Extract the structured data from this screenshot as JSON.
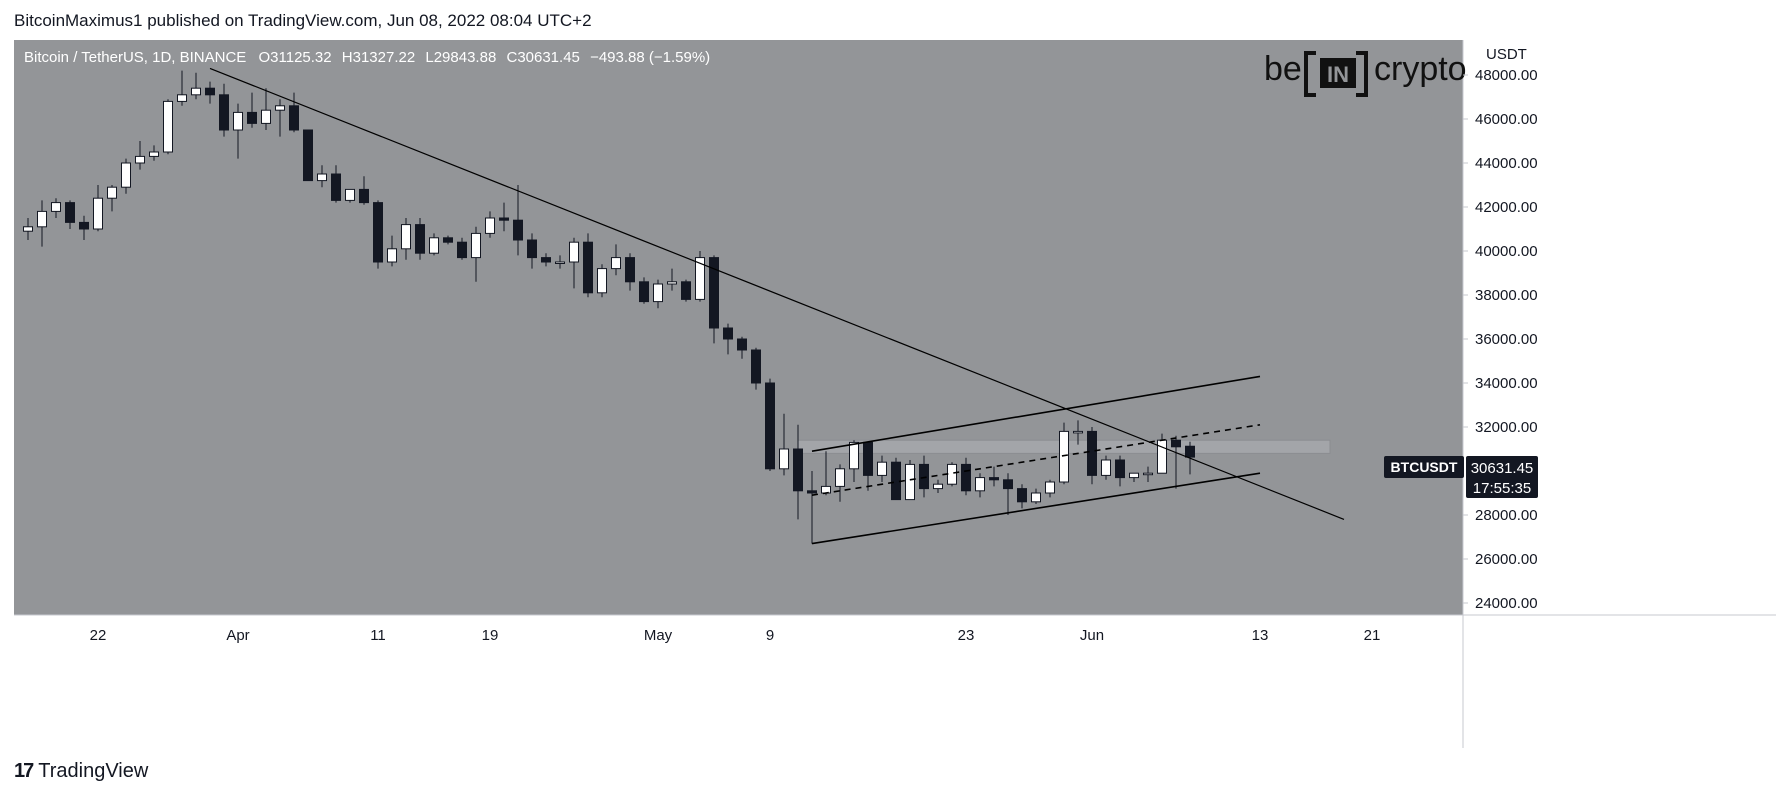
{
  "header": {
    "attribution": "BitcoinMaximus1 published on TradingView.com, Jun 08, 2022 08:04 UTC+2"
  },
  "legend": {
    "symbol": "Bitcoin / TetherUS, 1D, BINANCE",
    "o_label": "O",
    "o_value": "31125.32",
    "h_label": "H",
    "h_value": "31327.22",
    "l_label": "L",
    "l_value": "29843.88",
    "c_label": "C",
    "c_value": "30631.45",
    "change": "−493.88 (−1.59%)"
  },
  "watermark": {
    "left": "be",
    "middle": "IN",
    "right": "crypto"
  },
  "price_axis": {
    "currency": "USDT",
    "ticks": [
      "48000.00",
      "46000.00",
      "44000.00",
      "42000.00",
      "40000.00",
      "38000.00",
      "36000.00",
      "34000.00",
      "32000.00",
      "28000.00",
      "26000.00",
      "24000.00"
    ],
    "symbol_tag": "BTCUSDT",
    "last_price": "30631.45",
    "countdown": "17:55:35"
  },
  "time_axis": {
    "labels": [
      "22",
      "Apr",
      "11",
      "19",
      "May",
      "9",
      "23",
      "Jun",
      "13",
      "21"
    ]
  },
  "footer": {
    "brand": "TradingView"
  },
  "colors": {
    "background": "#939598",
    "bull": "#ffffff",
    "bear": "#131722",
    "line": "#000000",
    "resistance_band": "#a3a5a9",
    "tag_bg": "#131722"
  },
  "chart_data": {
    "type": "candlestick",
    "title": "Bitcoin / TetherUS, 1D, BINANCE",
    "ylabel": "USDT",
    "ylim": [
      24000,
      49000
    ],
    "x_ticks": [
      {
        "date": "2022-03-22",
        "label": "22"
      },
      {
        "date": "2022-04-01",
        "label": "Apr"
      },
      {
        "date": "2022-04-11",
        "label": "11"
      },
      {
        "date": "2022-04-19",
        "label": "19"
      },
      {
        "date": "2022-05-01",
        "label": "May"
      },
      {
        "date": "2022-05-09",
        "label": "9"
      },
      {
        "date": "2022-05-23",
        "label": "23"
      },
      {
        "date": "2022-06-01",
        "label": "Jun"
      },
      {
        "date": "2022-06-13",
        "label": "13"
      },
      {
        "date": "2022-06-21",
        "label": "21"
      }
    ],
    "candles": [
      {
        "date": "2022-03-17",
        "o": 40900,
        "h": 41500,
        "l": 40500,
        "c": 41100
      },
      {
        "date": "2022-03-18",
        "o": 41100,
        "h": 42300,
        "l": 40200,
        "c": 41800
      },
      {
        "date": "2022-03-19",
        "o": 41800,
        "h": 42400,
        "l": 41500,
        "c": 42200
      },
      {
        "date": "2022-03-20",
        "o": 42200,
        "h": 42300,
        "l": 41000,
        "c": 41300
      },
      {
        "date": "2022-03-21",
        "o": 41300,
        "h": 41600,
        "l": 40500,
        "c": 41000
      },
      {
        "date": "2022-03-22",
        "o": 41000,
        "h": 43000,
        "l": 40900,
        "c": 42400
      },
      {
        "date": "2022-03-23",
        "o": 42400,
        "h": 43000,
        "l": 41800,
        "c": 42900
      },
      {
        "date": "2022-03-24",
        "o": 42900,
        "h": 44200,
        "l": 42600,
        "c": 44000
      },
      {
        "date": "2022-03-25",
        "o": 44000,
        "h": 45000,
        "l": 43700,
        "c": 44300
      },
      {
        "date": "2022-03-26",
        "o": 44300,
        "h": 44800,
        "l": 44100,
        "c": 44500
      },
      {
        "date": "2022-03-27",
        "o": 44500,
        "h": 46900,
        "l": 44400,
        "c": 46800
      },
      {
        "date": "2022-03-28",
        "o": 46800,
        "h": 48200,
        "l": 46600,
        "c": 47100
      },
      {
        "date": "2022-03-29",
        "o": 47100,
        "h": 48100,
        "l": 46900,
        "c": 47400
      },
      {
        "date": "2022-03-30",
        "o": 47400,
        "h": 47700,
        "l": 46700,
        "c": 47100
      },
      {
        "date": "2022-03-31",
        "o": 47100,
        "h": 47600,
        "l": 45200,
        "c": 45500
      },
      {
        "date": "2022-04-01",
        "o": 45500,
        "h": 46700,
        "l": 44200,
        "c": 46300
      },
      {
        "date": "2022-04-02",
        "o": 46300,
        "h": 47200,
        "l": 45600,
        "c": 45800
      },
      {
        "date": "2022-04-03",
        "o": 45800,
        "h": 47400,
        "l": 45500,
        "c": 46400
      },
      {
        "date": "2022-04-04",
        "o": 46400,
        "h": 46900,
        "l": 45200,
        "c": 46600
      },
      {
        "date": "2022-04-05",
        "o": 46600,
        "h": 47200,
        "l": 45400,
        "c": 45500
      },
      {
        "date": "2022-04-06",
        "o": 45500,
        "h": 45500,
        "l": 43300,
        "c": 43200
      },
      {
        "date": "2022-04-07",
        "o": 43200,
        "h": 43900,
        "l": 42900,
        "c": 43500
      },
      {
        "date": "2022-04-08",
        "o": 43500,
        "h": 43900,
        "l": 42200,
        "c": 42300
      },
      {
        "date": "2022-04-09",
        "o": 42300,
        "h": 42800,
        "l": 42200,
        "c": 42800
      },
      {
        "date": "2022-04-10",
        "o": 42800,
        "h": 43400,
        "l": 42100,
        "c": 42200
      },
      {
        "date": "2022-04-11",
        "o": 42200,
        "h": 42300,
        "l": 39200,
        "c": 39500
      },
      {
        "date": "2022-04-12",
        "o": 39500,
        "h": 40700,
        "l": 39300,
        "c": 40100
      },
      {
        "date": "2022-04-13",
        "o": 40100,
        "h": 41500,
        "l": 39600,
        "c": 41200
      },
      {
        "date": "2022-04-14",
        "o": 41200,
        "h": 41500,
        "l": 39600,
        "c": 39900
      },
      {
        "date": "2022-04-15",
        "o": 39900,
        "h": 40800,
        "l": 39800,
        "c": 40600
      },
      {
        "date": "2022-04-16",
        "o": 40600,
        "h": 40700,
        "l": 40300,
        "c": 40400
      },
      {
        "date": "2022-04-17",
        "o": 40400,
        "h": 40600,
        "l": 39600,
        "c": 39700
      },
      {
        "date": "2022-04-18",
        "o": 39700,
        "h": 41100,
        "l": 38600,
        "c": 40800
      },
      {
        "date": "2022-04-19",
        "o": 40800,
        "h": 41800,
        "l": 40600,
        "c": 41500
      },
      {
        "date": "2022-04-20",
        "o": 41500,
        "h": 42200,
        "l": 40900,
        "c": 41400
      },
      {
        "date": "2022-04-21",
        "o": 41400,
        "h": 43000,
        "l": 39800,
        "c": 40500
      },
      {
        "date": "2022-04-22",
        "o": 40500,
        "h": 40800,
        "l": 39200,
        "c": 39700
      },
      {
        "date": "2022-04-23",
        "o": 39700,
        "h": 39900,
        "l": 39300,
        "c": 39500
      },
      {
        "date": "2022-04-24",
        "o": 39500,
        "h": 39800,
        "l": 39200,
        "c": 39500
      },
      {
        "date": "2022-04-25",
        "o": 39500,
        "h": 40600,
        "l": 38300,
        "c": 40400
      },
      {
        "date": "2022-04-26",
        "o": 40400,
        "h": 40800,
        "l": 37900,
        "c": 38100
      },
      {
        "date": "2022-04-27",
        "o": 38100,
        "h": 39400,
        "l": 37900,
        "c": 39200
      },
      {
        "date": "2022-04-28",
        "o": 39200,
        "h": 40300,
        "l": 38900,
        "c": 39700
      },
      {
        "date": "2022-04-29",
        "o": 39700,
        "h": 39900,
        "l": 38200,
        "c": 38600
      },
      {
        "date": "2022-04-30",
        "o": 38600,
        "h": 38800,
        "l": 37600,
        "c": 37700
      },
      {
        "date": "2022-05-01",
        "o": 37700,
        "h": 38700,
        "l": 37400,
        "c": 38500
      },
      {
        "date": "2022-05-02",
        "o": 38500,
        "h": 39200,
        "l": 38200,
        "c": 38600
      },
      {
        "date": "2022-05-03",
        "o": 38600,
        "h": 38700,
        "l": 37700,
        "c": 37800
      },
      {
        "date": "2022-05-04",
        "o": 37800,
        "h": 40000,
        "l": 37700,
        "c": 39700
      },
      {
        "date": "2022-05-05",
        "o": 39700,
        "h": 39800,
        "l": 35800,
        "c": 36500
      },
      {
        "date": "2022-05-06",
        "o": 36500,
        "h": 36700,
        "l": 35300,
        "c": 36000
      },
      {
        "date": "2022-05-07",
        "o": 36000,
        "h": 36100,
        "l": 35100,
        "c": 35500
      },
      {
        "date": "2022-05-08",
        "o": 35500,
        "h": 35600,
        "l": 33700,
        "c": 34000
      },
      {
        "date": "2022-05-09",
        "o": 34000,
        "h": 34200,
        "l": 30000,
        "c": 30100
      },
      {
        "date": "2022-05-10",
        "o": 30100,
        "h": 32600,
        "l": 29800,
        "c": 31000
      },
      {
        "date": "2022-05-11",
        "o": 31000,
        "h": 32100,
        "l": 27800,
        "c": 29100
      },
      {
        "date": "2022-05-12",
        "o": 29100,
        "h": 30000,
        "l": 26700,
        "c": 29000
      },
      {
        "date": "2022-05-13",
        "o": 29000,
        "h": 30900,
        "l": 28900,
        "c": 29300
      },
      {
        "date": "2022-05-14",
        "o": 29300,
        "h": 30300,
        "l": 28600,
        "c": 30100
      },
      {
        "date": "2022-05-15",
        "o": 30100,
        "h": 31400,
        "l": 29500,
        "c": 31300
      },
      {
        "date": "2022-05-16",
        "o": 31300,
        "h": 31300,
        "l": 29100,
        "c": 29800
      },
      {
        "date": "2022-05-17",
        "o": 29800,
        "h": 30700,
        "l": 29500,
        "c": 30400
      },
      {
        "date": "2022-05-18",
        "o": 30400,
        "h": 30600,
        "l": 28700,
        "c": 28700
      },
      {
        "date": "2022-05-19",
        "o": 28700,
        "h": 30500,
        "l": 28700,
        "c": 30300
      },
      {
        "date": "2022-05-20",
        "o": 30300,
        "h": 30700,
        "l": 28800,
        "c": 29200
      },
      {
        "date": "2022-05-21",
        "o": 29200,
        "h": 29600,
        "l": 29000,
        "c": 29400
      },
      {
        "date": "2022-05-22",
        "o": 29400,
        "h": 30400,
        "l": 29300,
        "c": 30300
      },
      {
        "date": "2022-05-23",
        "o": 30300,
        "h": 30600,
        "l": 28900,
        "c": 29100
      },
      {
        "date": "2022-05-24",
        "o": 29100,
        "h": 29900,
        "l": 28800,
        "c": 29700
      },
      {
        "date": "2022-05-25",
        "o": 29700,
        "h": 30200,
        "l": 29300,
        "c": 29600
      },
      {
        "date": "2022-05-26",
        "o": 29600,
        "h": 29900,
        "l": 28000,
        "c": 29200
      },
      {
        "date": "2022-05-27",
        "o": 29200,
        "h": 29400,
        "l": 28300,
        "c": 28600
      },
      {
        "date": "2022-05-28",
        "o": 28600,
        "h": 29200,
        "l": 28500,
        "c": 29000
      },
      {
        "date": "2022-05-29",
        "o": 29000,
        "h": 29600,
        "l": 28800,
        "c": 29500
      },
      {
        "date": "2022-05-30",
        "o": 29500,
        "h": 32200,
        "l": 29400,
        "c": 31800
      },
      {
        "date": "2022-05-31",
        "o": 31800,
        "h": 32300,
        "l": 31200,
        "c": 31800
      },
      {
        "date": "2022-06-01",
        "o": 31800,
        "h": 32000,
        "l": 29400,
        "c": 29800
      },
      {
        "date": "2022-06-02",
        "o": 29800,
        "h": 30700,
        "l": 29600,
        "c": 30500
      },
      {
        "date": "2022-06-03",
        "o": 30500,
        "h": 30700,
        "l": 29300,
        "c": 29700
      },
      {
        "date": "2022-06-04",
        "o": 29700,
        "h": 29900,
        "l": 29500,
        "c": 29900
      },
      {
        "date": "2022-06-05",
        "o": 29900,
        "h": 30200,
        "l": 29500,
        "c": 29900
      },
      {
        "date": "2022-06-06",
        "o": 29900,
        "h": 31700,
        "l": 29900,
        "c": 31400
      },
      {
        "date": "2022-06-07",
        "o": 31400,
        "h": 31600,
        "l": 29200,
        "c": 31100
      },
      {
        "date": "2022-06-08",
        "o": 31125.32,
        "h": 31327.22,
        "l": 29843.88,
        "c": 30631.45
      }
    ],
    "trendlines": [
      {
        "name": "descending-resistance",
        "style": "solid",
        "from": {
          "date": "2022-03-30",
          "price": 48300
        },
        "to": {
          "date": "2022-06-19",
          "price": 27800
        }
      },
      {
        "name": "channel-upper",
        "style": "solid",
        "from": {
          "date": "2022-05-12",
          "price": 30900
        },
        "to": {
          "date": "2022-06-13",
          "price": 34300
        }
      },
      {
        "name": "channel-lower",
        "style": "solid",
        "from": {
          "date": "2022-05-12",
          "price": 26700
        },
        "to": {
          "date": "2022-06-13",
          "price": 29900
        }
      },
      {
        "name": "channel-midline",
        "style": "dashed",
        "from": {
          "date": "2022-05-12",
          "price": 28900
        },
        "to": {
          "date": "2022-06-13",
          "price": 32100
        }
      },
      {
        "name": "resistance-band",
        "style": "band",
        "from": {
          "date": "2022-05-11",
          "price_high": 31400,
          "price_low": 30800
        },
        "to": {
          "date": "2022-06-18"
        }
      }
    ]
  }
}
